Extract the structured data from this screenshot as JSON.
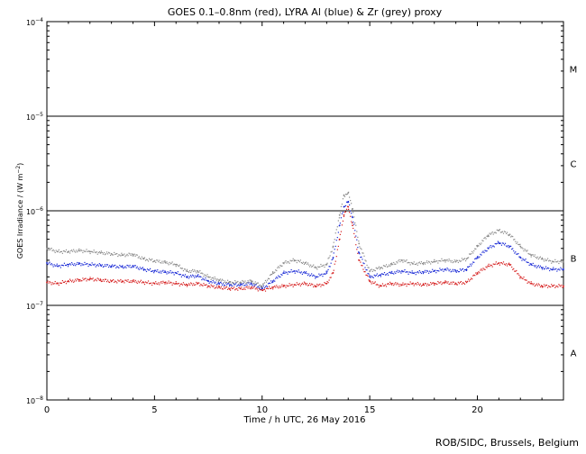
{
  "chart_data": {
    "type": "scatter",
    "title": "GOES 0.1–0.8nm (red), LYRA Al (blue) & Zr (grey) proxy",
    "xlabel": "Time / h UTC, 26 May 2016",
    "ylabel_prefix": "GOES Irradiance / (W m",
    "ylabel_exp": "−2",
    "ylabel_suffix": ")",
    "xlim": [
      0,
      24
    ],
    "ylim": [
      1e-08,
      0.0001
    ],
    "yscale": "log",
    "x_ticks": [
      {
        "value": 0,
        "label": "0"
      },
      {
        "value": 5,
        "label": "5"
      },
      {
        "value": 10,
        "label": "10"
      },
      {
        "value": 15,
        "label": "15"
      },
      {
        "value": 20,
        "label": "20"
      }
    ],
    "y_ticks": [
      {
        "value": 1e-08,
        "base": "10",
        "exp": "−8"
      },
      {
        "value": 1e-07,
        "base": "10",
        "exp": "−7"
      },
      {
        "value": 1e-06,
        "base": "10",
        "exp": "−6"
      },
      {
        "value": 1e-05,
        "base": "10",
        "exp": "−5"
      },
      {
        "value": 0.0001,
        "base": "10",
        "exp": "−4"
      }
    ],
    "flare_class_lines": [
      1e-07,
      1e-06,
      1e-05
    ],
    "flare_classes": [
      {
        "label": "A",
        "value": 3.16e-08
      },
      {
        "label": "B",
        "value": 3.16e-07
      },
      {
        "label": "C",
        "value": 3.16e-06
      },
      {
        "label": "M",
        "value": 3.16e-05
      }
    ],
    "credit": "ROB/SIDC, Brussels, Belgium",
    "series": [
      {
        "color": "#d62020",
        "x": [
          0,
          0.5,
          1,
          1.5,
          2,
          2.5,
          3,
          3.5,
          4,
          4.5,
          5,
          5.5,
          6,
          6.5,
          7,
          7.5,
          8,
          8.5,
          9,
          9.5,
          10,
          10.5,
          11,
          11.5,
          12,
          12.5,
          13,
          13.3,
          13.6,
          13.8,
          14,
          14.2,
          14.5,
          15,
          15.5,
          16,
          16.5,
          17,
          17.5,
          18,
          18.5,
          19,
          19.5,
          20,
          20.5,
          21,
          21.5,
          22,
          22.5,
          23,
          23.5,
          24
        ],
        "y": [
          1.75e-07,
          1.7e-07,
          1.8e-07,
          1.85e-07,
          1.9e-07,
          1.85e-07,
          1.8e-07,
          1.8e-07,
          1.8e-07,
          1.75e-07,
          1.7e-07,
          1.75e-07,
          1.7e-07,
          1.65e-07,
          1.7e-07,
          1.6e-07,
          1.55e-07,
          1.5e-07,
          1.5e-07,
          1.55e-07,
          1.45e-07,
          1.55e-07,
          1.6e-07,
          1.65e-07,
          1.7e-07,
          1.6e-07,
          1.7e-07,
          2.2e-07,
          5e-07,
          9e-07,
          1.1e-06,
          7e-07,
          3e-07,
          1.8e-07,
          1.6e-07,
          1.7e-07,
          1.65e-07,
          1.7e-07,
          1.65e-07,
          1.7e-07,
          1.75e-07,
          1.7e-07,
          1.75e-07,
          2.2e-07,
          2.6e-07,
          2.8e-07,
          2.7e-07,
          2e-07,
          1.7e-07,
          1.6e-07,
          1.6e-07,
          1.6e-07
        ]
      },
      {
        "color": "#1a2ad6",
        "x": [
          0,
          0.5,
          1,
          1.5,
          2,
          2.5,
          3,
          3.5,
          4,
          4.5,
          5,
          5.5,
          6,
          6.5,
          7,
          7.5,
          8,
          8.5,
          9,
          9.5,
          10,
          10.5,
          11,
          11.5,
          12,
          12.5,
          13,
          13.3,
          13.6,
          13.8,
          14,
          14.2,
          14.5,
          15,
          15.5,
          16,
          16.5,
          17,
          17.5,
          18,
          18.5,
          19,
          19.5,
          20,
          20.5,
          21,
          21.5,
          22,
          22.5,
          23,
          23.5,
          24
        ],
        "y": [
          2.8e-07,
          2.6e-07,
          2.7e-07,
          2.75e-07,
          2.7e-07,
          2.65e-07,
          2.6e-07,
          2.55e-07,
          2.6e-07,
          2.4e-07,
          2.3e-07,
          2.25e-07,
          2.2e-07,
          2e-07,
          2.05e-07,
          1.8e-07,
          1.7e-07,
          1.65e-07,
          1.65e-07,
          1.7e-07,
          1.5e-07,
          1.8e-07,
          2.2e-07,
          2.3e-07,
          2.2e-07,
          2e-07,
          2.2e-07,
          3.2e-07,
          7e-07,
          1.1e-06,
          1.25e-06,
          8.5e-07,
          3.6e-07,
          2e-07,
          2.1e-07,
          2.2e-07,
          2.3e-07,
          2.2e-07,
          2.25e-07,
          2.3e-07,
          2.4e-07,
          2.3e-07,
          2.4e-07,
          3.2e-07,
          4e-07,
          4.6e-07,
          4.2e-07,
          3.2e-07,
          2.7e-07,
          2.5e-07,
          2.4e-07,
          2.4e-07
        ]
      },
      {
        "color": "#8a8a8a",
        "x": [
          0,
          0.5,
          1,
          1.5,
          2,
          2.5,
          3,
          3.5,
          4,
          4.5,
          5,
          5.5,
          6,
          6.5,
          7,
          7.5,
          8,
          8.5,
          9,
          9.5,
          10,
          10.5,
          11,
          11.5,
          12,
          12.5,
          13,
          13.3,
          13.6,
          13.8,
          14,
          14.2,
          14.5,
          15,
          15.5,
          16,
          16.5,
          17,
          17.5,
          18,
          18.5,
          19,
          19.5,
          20,
          20.5,
          21,
          21.5,
          22,
          22.5,
          23,
          23.5,
          24
        ],
        "y": [
          4e-07,
          3.7e-07,
          3.7e-07,
          3.8e-07,
          3.7e-07,
          3.6e-07,
          3.5e-07,
          3.4e-07,
          3.45e-07,
          3.1e-07,
          2.95e-07,
          2.85e-07,
          2.7e-07,
          2.3e-07,
          2.3e-07,
          2e-07,
          1.85e-07,
          1.75e-07,
          1.75e-07,
          1.8e-07,
          1.6e-07,
          2.2e-07,
          2.8e-07,
          3e-07,
          2.8e-07,
          2.5e-07,
          2.7e-07,
          4.2e-07,
          9e-07,
          1.45e-06,
          1.55e-06,
          1.05e-06,
          4.5e-07,
          2.3e-07,
          2.5e-07,
          2.7e-07,
          3e-07,
          2.75e-07,
          2.8e-07,
          2.9e-07,
          3e-07,
          2.9e-07,
          3.1e-07,
          4.2e-07,
          5.5e-07,
          6.2e-07,
          5.6e-07,
          4.2e-07,
          3.4e-07,
          3.1e-07,
          2.9e-07,
          2.9e-07
        ]
      }
    ]
  }
}
